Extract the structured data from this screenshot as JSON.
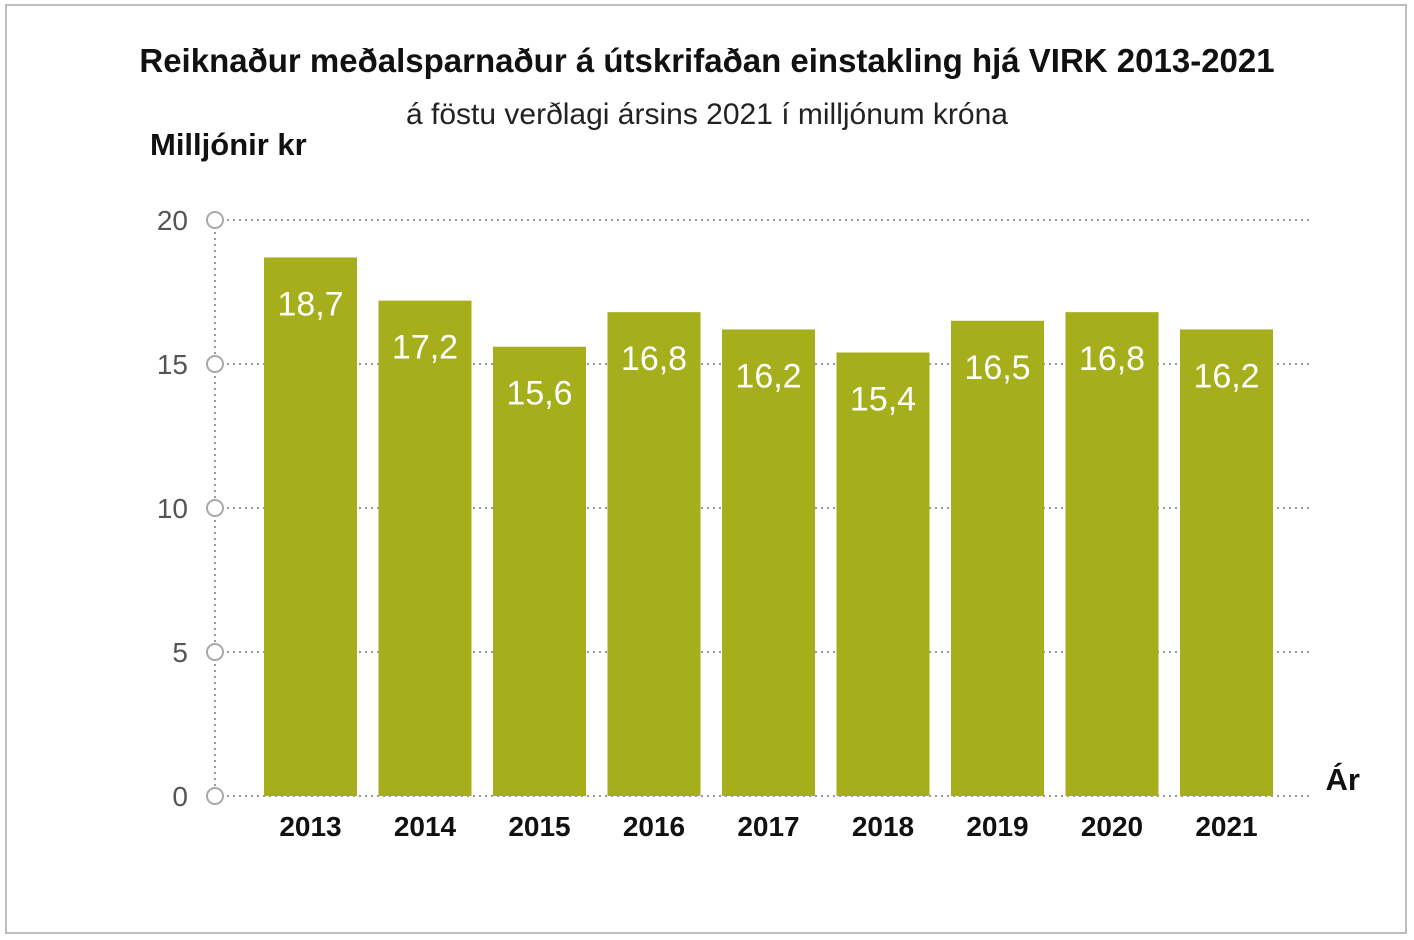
{
  "chart_data": {
    "type": "bar",
    "title": "Reiknaður meðalsparnaður á útskrifaðan einstakling hjá VIRK 2013-2021",
    "subtitle": "á föstu verðlagi ársins 2021 í milljónum króna",
    "ylabel": "Milljónir kr",
    "xlabel": "Ár",
    "categories": [
      "2013",
      "2014",
      "2015",
      "2016",
      "2017",
      "2018",
      "2019",
      "2020",
      "2021"
    ],
    "values": [
      18.7,
      17.2,
      15.6,
      16.8,
      16.2,
      15.4,
      16.5,
      16.8,
      16.2
    ],
    "value_labels": [
      "18,7",
      "17,2",
      "15,6",
      "16,8",
      "16,2",
      "15,4",
      "16,5",
      "16,8",
      "16,2"
    ],
    "yticks": [
      0,
      5,
      10,
      15,
      20
    ],
    "ylim": [
      0,
      20
    ],
    "grid": true,
    "bar_color": "#a5ae1b",
    "grid_color": "#9a9a9a"
  }
}
